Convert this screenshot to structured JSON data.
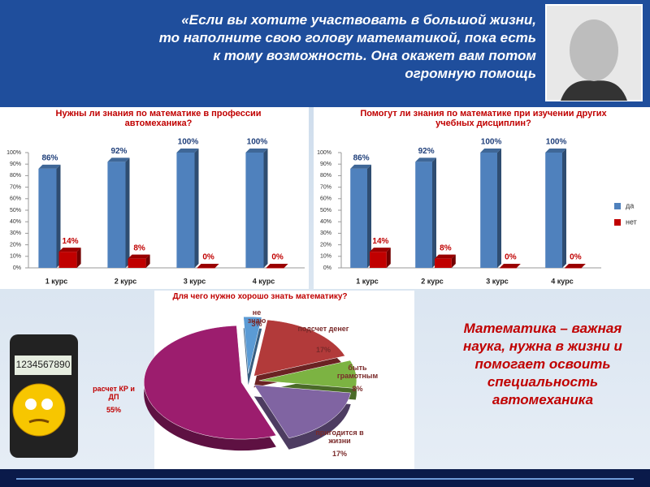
{
  "quote": {
    "lines": [
      "«Если вы хотите участвовать в  большой жизни,",
      "то наполните свою голову математикой,  пока есть",
      "к тому возможность. Она окажет вам потом",
      "огромную помощь"
    ]
  },
  "calculator": {
    "display": "1234567890"
  },
  "conclusion": "Математика – важная наука, нужна в жизни и помогает освоить специальность автомеханика",
  "chart_data": [
    {
      "type": "bar",
      "title": "Нужны ли знания по математике в профессии автомеханика?",
      "categories": [
        "1 курс",
        "2 курс",
        "3 курс",
        "4 курс"
      ],
      "series": [
        {
          "color": "#4f81bd",
          "values": [
            86,
            92,
            100,
            100
          ],
          "value_labels": [
            "86%",
            "92%",
            "100%",
            "100%"
          ]
        },
        {
          "color": "#c00000",
          "values": [
            14,
            8,
            0,
            0
          ],
          "value_labels": [
            "14%",
            "8%",
            "0%",
            "0%"
          ]
        }
      ],
      "ylim": [
        0,
        100
      ],
      "yticks": [
        {
          "value": 0,
          "label": "0%"
        },
        {
          "value": 10,
          "label": "10%"
        },
        {
          "value": 20,
          "label": "20%"
        },
        {
          "value": 30,
          "label": "30%"
        },
        {
          "value": 40,
          "label": "40%"
        },
        {
          "value": 50,
          "label": "50%"
        },
        {
          "value": 60,
          "label": "60%"
        },
        {
          "value": 70,
          "label": "70%"
        },
        {
          "value": 80,
          "label": "80%"
        },
        {
          "value": 90,
          "label": "90%"
        },
        {
          "value": 100,
          "label": "100%"
        }
      ]
    },
    {
      "type": "bar",
      "title": "Помогут ли знания по математике при изучении других учебных дисциплин?",
      "categories": [
        "1 курс",
        "2 курс",
        "3 курс",
        "4 курс"
      ],
      "series": [
        {
          "name": "да",
          "color": "#4f81bd",
          "values": [
            86,
            92,
            100,
            100
          ],
          "value_labels": [
            "86%",
            "92%",
            "100%",
            "100%"
          ]
        },
        {
          "name": "нет",
          "color": "#c00000",
          "values": [
            14,
            8,
            0,
            0
          ],
          "value_labels": [
            "14%",
            "8%",
            "0%",
            "0%"
          ]
        }
      ],
      "ylim": [
        0,
        100
      ],
      "yticks": [
        {
          "value": 0,
          "label": "0%"
        },
        {
          "value": 10,
          "label": "10%"
        },
        {
          "value": 20,
          "label": "20%"
        },
        {
          "value": 30,
          "label": "30%"
        },
        {
          "value": 40,
          "label": "40%"
        },
        {
          "value": 50,
          "label": "50%"
        },
        {
          "value": 60,
          "label": "60%"
        },
        {
          "value": 70,
          "label": "70%"
        },
        {
          "value": 80,
          "label": "80%"
        },
        {
          "value": 90,
          "label": "90%"
        },
        {
          "value": 100,
          "label": "100%"
        }
      ],
      "legend": "right"
    },
    {
      "type": "pie",
      "title": "Для чего нужно хорошо знать математику?",
      "categories": [
        "не знаю",
        "подсчет денег",
        "быть грамотным",
        "пригодится в жизни",
        "расчет КР и ДП"
      ],
      "values": [
        3,
        17,
        8,
        17,
        55
      ],
      "value_labels": [
        "3%",
        "17%",
        "8%",
        "17%",
        "55%"
      ],
      "colors": [
        "#5b9bd5",
        "#b23a3a",
        "#7cb342",
        "#8064a2",
        "#9c1d6e"
      ]
    }
  ]
}
